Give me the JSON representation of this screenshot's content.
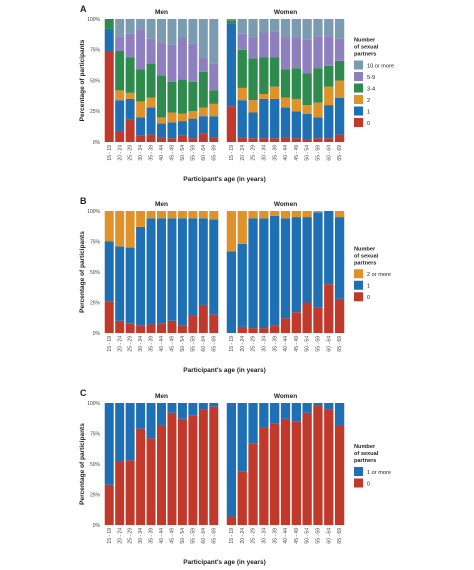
{
  "colors": {
    "c10plus": "#7a9bb0",
    "c5to9": "#8e7fbf",
    "c3to4": "#2e8a4d",
    "c2": "#e0922a",
    "c1": "#1f6fb5",
    "c0": "#c0392b"
  },
  "chart_data": [
    {
      "type": "bar",
      "stacked": true,
      "panel": "A",
      "facets": [
        "Men",
        "Women"
      ],
      "xlabel": "Participant's age (in years)",
      "ylabel": "Percentage of participants",
      "y_ticks": [
        "0%",
        "25%",
        "50%",
        "75%",
        "100%"
      ],
      "ylim": [
        0,
        100
      ],
      "categories": [
        "15 - 19",
        "20 - 24",
        "25 - 29",
        "30 - 34",
        "35 - 39",
        "40 - 44",
        "45 - 49",
        "50 - 54",
        "55 - 59",
        "60 - 64",
        "65 - 69"
      ],
      "legend_title": "Number of sexual partners",
      "legend_title_lines": [
        "Number",
        "of sexual",
        "partners"
      ],
      "legend": [
        "10 or more",
        "5-9",
        "3-4",
        "2",
        "1",
        "0"
      ],
      "legend_colors": [
        "c10plus",
        "c5to9",
        "c3to4",
        "c2",
        "c1",
        "c0"
      ],
      "stack_keys": [
        "0",
        "1",
        "2",
        "3-4",
        "5-9",
        "10 or more"
      ],
      "stack_colors": [
        "c0",
        "c1",
        "c2",
        "c3to4",
        "c5to9",
        "c10plus"
      ],
      "series": {
        "Men": {
          "0": [
            74,
            9,
            18,
            5,
            6,
            4,
            3,
            5,
            3,
            7,
            4
          ],
          "1": [
            18,
            25,
            17,
            15,
            22,
            11,
            13,
            12,
            16,
            14,
            17
          ],
          "2": [
            0,
            8,
            5,
            13,
            8,
            5,
            8,
            6,
            6,
            7,
            10
          ],
          "3-4": [
            8,
            32,
            29,
            26,
            28,
            34,
            25,
            28,
            24,
            29,
            11
          ],
          "5-9": [
            0,
            12,
            19,
            32,
            20,
            27,
            30,
            34,
            31,
            12,
            22
          ],
          "10 or more": [
            0,
            14,
            12,
            9,
            16,
            19,
            21,
            15,
            20,
            31,
            36
          ]
        },
        "Women": {
          "0": [
            29,
            4,
            3,
            3,
            3,
            4,
            3,
            2,
            3,
            3,
            6
          ],
          "1": [
            67,
            30,
            21,
            32,
            32,
            24,
            22,
            21,
            17,
            27,
            30
          ],
          "2": [
            0,
            10,
            10,
            4,
            10,
            8,
            10,
            7,
            12,
            15,
            14
          ],
          "3-4": [
            3,
            31,
            34,
            30,
            24,
            23,
            25,
            26,
            28,
            17,
            16
          ],
          "5-9": [
            1,
            13,
            17,
            20,
            21,
            26,
            25,
            27,
            26,
            24,
            18
          ],
          "10 or more": [
            0,
            12,
            15,
            11,
            10,
            15,
            15,
            17,
            14,
            14,
            16
          ]
        }
      }
    },
    {
      "type": "bar",
      "stacked": true,
      "panel": "B",
      "facets": [
        "Men",
        "Women"
      ],
      "xlabel": "Participant's age (in years)",
      "ylabel": "Percentage of participants",
      "y_ticks": [
        "0%",
        "25%",
        "50%",
        "75%",
        "100%"
      ],
      "ylim": [
        0,
        100
      ],
      "categories": [
        "15 - 19",
        "20 - 24",
        "25 - 29",
        "30 - 34",
        "35 - 39",
        "40 - 44",
        "45 - 49",
        "50 - 54",
        "55 - 59",
        "60 - 64",
        "65 - 69"
      ],
      "legend_title": "Number of sexual partners",
      "legend_title_lines": [
        "Number",
        "of sexual",
        "partners"
      ],
      "legend": [
        "2 or more",
        "1",
        "0"
      ],
      "legend_colors": [
        "c2",
        "c1",
        "c0"
      ],
      "stack_keys": [
        "0",
        "1",
        "2 or more"
      ],
      "stack_colors": [
        "c0",
        "c1",
        "c2"
      ],
      "series": {
        "Men": {
          "0": [
            26,
            10,
            8,
            6,
            7,
            8,
            10,
            6,
            14,
            23,
            15
          ],
          "1": [
            49,
            61,
            62,
            81,
            87,
            86,
            84,
            88,
            80,
            71,
            78
          ],
          "2 or more": [
            25,
            29,
            30,
            13,
            6,
            6,
            6,
            6,
            6,
            6,
            7
          ]
        },
        "Women": {
          "0": [
            0,
            5,
            4,
            4,
            6,
            12,
            17,
            25,
            21,
            40,
            28
          ],
          "1": [
            67,
            68,
            90,
            90,
            90,
            82,
            78,
            70,
            78,
            60,
            67
          ],
          "2 or more": [
            33,
            27,
            6,
            6,
            4,
            6,
            5,
            5,
            1,
            0,
            5
          ]
        }
      }
    },
    {
      "type": "bar",
      "stacked": true,
      "panel": "C",
      "facets": [
        "Men",
        "Women"
      ],
      "xlabel": "Participant's age (in years)",
      "ylabel": "Percentage of participants",
      "y_ticks": [
        "0%",
        "25%",
        "50%",
        "75%",
        "100%"
      ],
      "ylim": [
        0,
        100
      ],
      "categories": [
        "15 - 19",
        "20 - 24",
        "25 - 29",
        "30 - 34",
        "35 - 39",
        "40 - 44",
        "45 - 49",
        "50 - 54",
        "55 - 59",
        "60 - 64",
        "65 - 69"
      ],
      "legend_title": "Number of sexual partners",
      "legend_title_lines": [
        "Number",
        "of sexual",
        "partners"
      ],
      "legend": [
        "1 or more",
        "0"
      ],
      "legend_colors": [
        "c1",
        "c0"
      ],
      "stack_keys": [
        "0",
        "1 or more"
      ],
      "stack_colors": [
        "c0",
        "c1"
      ],
      "series": {
        "Men": {
          "0": [
            33,
            52,
            53,
            79,
            71,
            82,
            92,
            87,
            90,
            95,
            97
          ],
          "1 or more": [
            67,
            48,
            47,
            21,
            29,
            18,
            8,
            13,
            10,
            5,
            3
          ]
        },
        "Women": {
          "0": [
            7,
            44,
            67,
            80,
            83,
            87,
            85,
            92,
            98,
            95,
            82
          ],
          "1 or more": [
            93,
            56,
            33,
            20,
            17,
            13,
            15,
            8,
            2,
            5,
            18
          ]
        }
      }
    }
  ]
}
